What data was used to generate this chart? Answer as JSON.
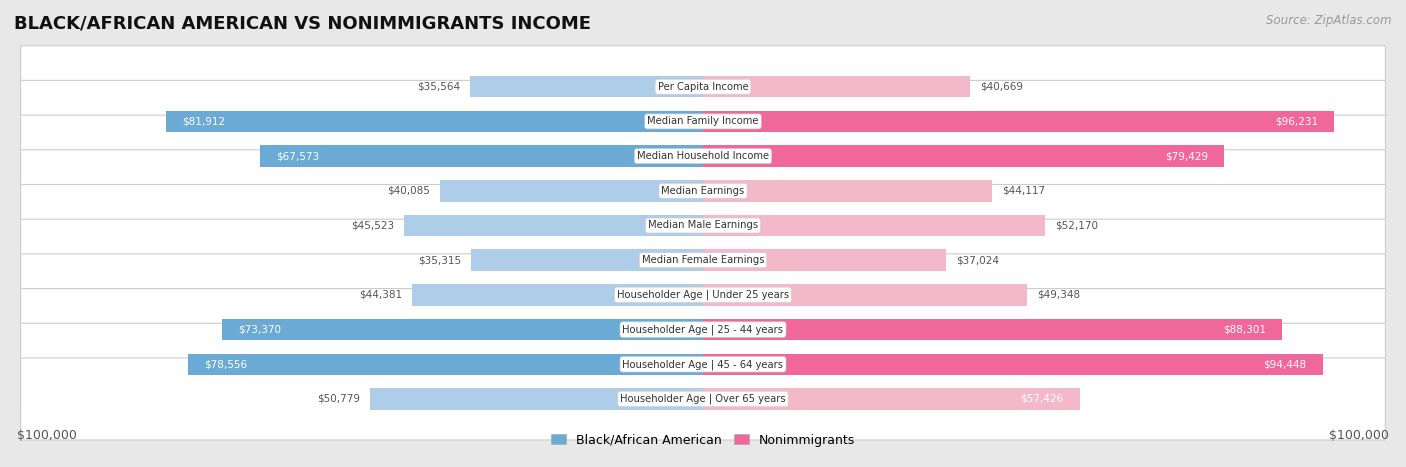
{
  "title": "BLACK/AFRICAN AMERICAN VS NONIMMIGRANTS INCOME",
  "source": "Source: ZipAtlas.com",
  "categories": [
    "Per Capita Income",
    "Median Family Income",
    "Median Household Income",
    "Median Earnings",
    "Median Male Earnings",
    "Median Female Earnings",
    "Householder Age | Under 25 years",
    "Householder Age | 25 - 44 years",
    "Householder Age | 45 - 64 years",
    "Householder Age | Over 65 years"
  ],
  "black_values": [
    35564,
    81912,
    67573,
    40085,
    45523,
    35315,
    44381,
    73370,
    78556,
    50779
  ],
  "nonimm_values": [
    40669,
    96231,
    79429,
    44117,
    52170,
    37024,
    49348,
    88301,
    94448,
    57426
  ],
  "max_value": 100000,
  "blue_light": "#aecde8",
  "blue_dark": "#6aaad4",
  "pink_light": "#f4b8cb",
  "pink_dark": "#f0679a",
  "blue_label": "Black/African American",
  "pink_label": "Nonimmigrants",
  "bg_color": "#e8e8e8",
  "row_bg": "#ffffff",
  "title_fontsize": 13,
  "source_fontsize": 8.5,
  "bar_height": 0.62,
  "threshold_dark": 60000,
  "axis_label_left": "$100,000",
  "axis_label_right": "$100,000"
}
